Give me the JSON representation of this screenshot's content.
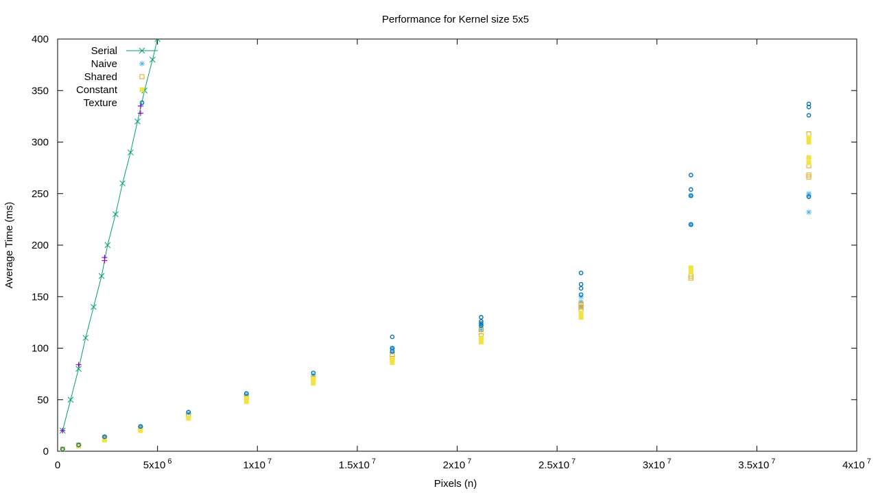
{
  "chart_data": {
    "type": "scatter",
    "title": "Performance for Kernel size 5x5",
    "xlabel": "Pixels (n)",
    "ylabel": "Average Time (ms)",
    "xlim": [
      0,
      40000000
    ],
    "ylim": [
      0,
      400
    ],
    "grid": false,
    "legend_position": "top-left",
    "x_ticks": [
      {
        "value": 0,
        "label": "0"
      },
      {
        "value": 5000000,
        "label": "5x10",
        "exp": "6"
      },
      {
        "value": 10000000,
        "label": "1x10",
        "exp": "7"
      },
      {
        "value": 15000000,
        "label": "1.5x10",
        "exp": "7"
      },
      {
        "value": 20000000,
        "label": "2x10",
        "exp": "7"
      },
      {
        "value": 25000000,
        "label": "2.5x10",
        "exp": "7"
      },
      {
        "value": 30000000,
        "label": "3x10",
        "exp": "7"
      },
      {
        "value": 35000000,
        "label": "3.5x10",
        "exp": "7"
      },
      {
        "value": 40000000,
        "label": "4x10",
        "exp": "7"
      }
    ],
    "y_ticks": [
      0,
      50,
      100,
      150,
      200,
      250,
      300,
      350,
      400
    ],
    "series": [
      {
        "name": "Serial",
        "color": "#009e73",
        "marker": "x",
        "line": true,
        "x": [
          250000,
          650000,
          1050000,
          1400000,
          1800000,
          2200000,
          2500000,
          2900000,
          3250000,
          3650000,
          4000000,
          4350000,
          4750000,
          5000000
        ],
        "y": [
          20,
          50,
          80,
          110,
          140,
          170,
          200,
          230,
          260,
          290,
          320,
          350,
          380,
          400
        ]
      },
      {
        "name": "Naive",
        "color": "#56b4e9",
        "marker": "asterisk",
        "line": false,
        "x": [
          250000,
          1050000,
          2350000,
          4150000,
          6550000,
          9450000,
          12800000,
          16750000,
          16750000,
          21200000,
          21200000,
          26200000,
          26200000,
          26200000,
          31700000,
          31700000,
          37600000,
          37600000,
          37600000
        ],
        "y": [
          2,
          6,
          14,
          24,
          37,
          55,
          74,
          96,
          100,
          118,
          122,
          140,
          145,
          150,
          220,
          248,
          232,
          248,
          250
        ]
      },
      {
        "name": "Shared",
        "color": "#e69f00",
        "marker": "open-square",
        "line": false,
        "x": [
          250000,
          1050000,
          2350000,
          4150000,
          6550000,
          9450000,
          12800000,
          16750000,
          16750000,
          21200000,
          21200000,
          26200000,
          26200000,
          26200000,
          31700000,
          31700000,
          37600000,
          37600000,
          37600000,
          37600000
        ],
        "y": [
          2,
          6,
          13,
          22,
          35,
          52,
          71,
          90,
          94,
          112,
          118,
          138,
          140,
          143,
          168,
          170,
          266,
          268,
          277,
          308
        ]
      },
      {
        "name": "Constant",
        "color": "#f0e442",
        "marker": "filled-square",
        "line": false,
        "x": [
          250000,
          1050000,
          2350000,
          4150000,
          6550000,
          9450000,
          9450000,
          12800000,
          12800000,
          16750000,
          16750000,
          21200000,
          21200000,
          26200000,
          26200000,
          31700000,
          31700000,
          37600000,
          37600000,
          37600000,
          37600000
        ],
        "y": [
          1,
          5,
          11,
          20,
          32,
          48,
          51,
          66,
          70,
          86,
          89,
          106,
          110,
          130,
          134,
          174,
          178,
          280,
          285,
          300,
          304
        ]
      },
      {
        "name": "Texture",
        "color": "#0072b2",
        "marker": "open-circle",
        "line": false,
        "x": [
          250000,
          1050000,
          2350000,
          4150000,
          6550000,
          9450000,
          12800000,
          16750000,
          16750000,
          16750000,
          21200000,
          21200000,
          21200000,
          21200000,
          26200000,
          26200000,
          26200000,
          26200000,
          31700000,
          31700000,
          31700000,
          31700000,
          37600000,
          37600000,
          37600000,
          37600000
        ],
        "y": [
          2,
          6,
          14,
          24,
          38,
          56,
          76,
          100,
          97,
          111,
          124,
          126,
          130,
          122,
          152,
          158,
          162,
          173,
          220,
          248,
          254,
          268,
          247,
          326,
          334,
          337
        ]
      }
    ],
    "extra_markers": {
      "color": "#9400d3",
      "marker": "plus",
      "x": [
        250000,
        1050000,
        2350000,
        2350000,
        4150000,
        4150000
      ],
      "y": [
        20,
        84,
        185,
        188,
        328,
        335
      ]
    }
  }
}
